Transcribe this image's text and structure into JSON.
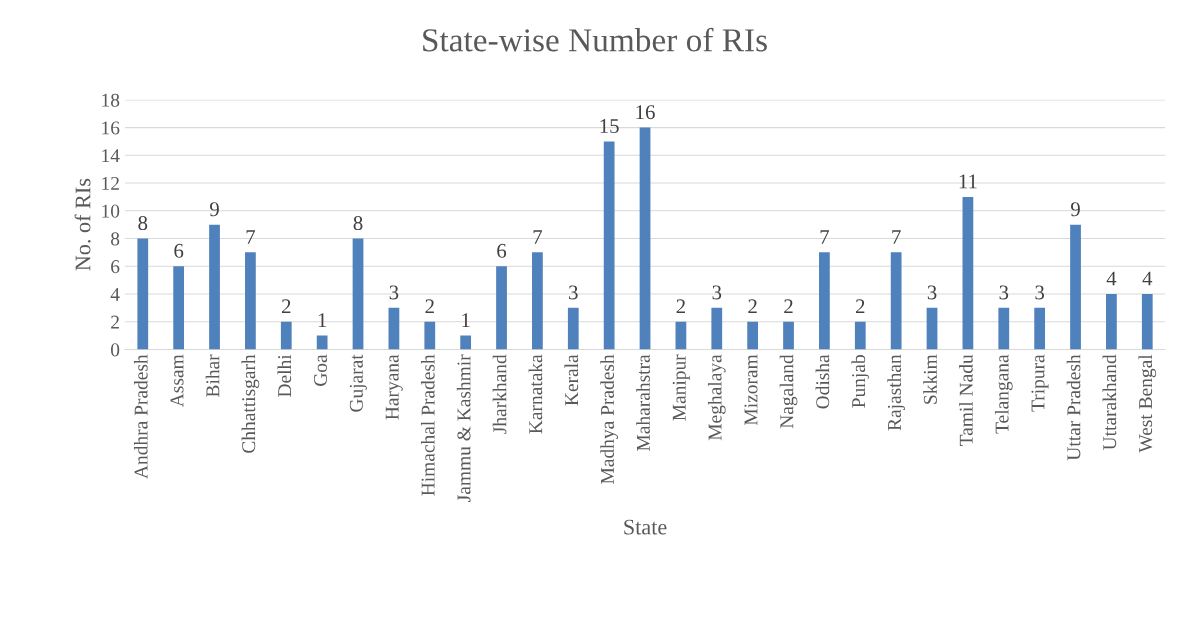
{
  "chart_data": {
    "type": "bar",
    "title": "State-wise Number of RIs",
    "xlabel": "State",
    "ylabel": "No. of RIs",
    "categories": [
      "Andhra Pradesh",
      "Assam",
      "Bihar",
      "Chhattisgarh",
      "Delhi",
      "Goa",
      "Gujarat",
      "Haryana",
      "Himachal Pradesh",
      "Jammu & Kashmir",
      "Jharkhand",
      "Karnataka",
      "Kerala",
      "Madhya Pradesh",
      "Maharahstra",
      "Manipur",
      "Meghalaya",
      "Mizoram",
      "Nagaland",
      "Odisha",
      "Punjab",
      "Rajasthan",
      "Skkim",
      "Tamil Nadu",
      "Telangana",
      "Tripura",
      "Uttar Pradesh",
      "Uttarakhand",
      "West Bengal"
    ],
    "values": [
      8,
      6,
      9,
      7,
      2,
      1,
      8,
      3,
      2,
      1,
      6,
      7,
      3,
      15,
      16,
      2,
      3,
      2,
      2,
      7,
      2,
      7,
      3,
      11,
      3,
      3,
      9,
      4,
      4
    ],
    "color": "#4f81bd",
    "ylim": [
      0,
      18
    ],
    "yticks": [
      0,
      2,
      4,
      6,
      8,
      10,
      12,
      14,
      16,
      18
    ],
    "grid": "y",
    "data_labels": true
  }
}
